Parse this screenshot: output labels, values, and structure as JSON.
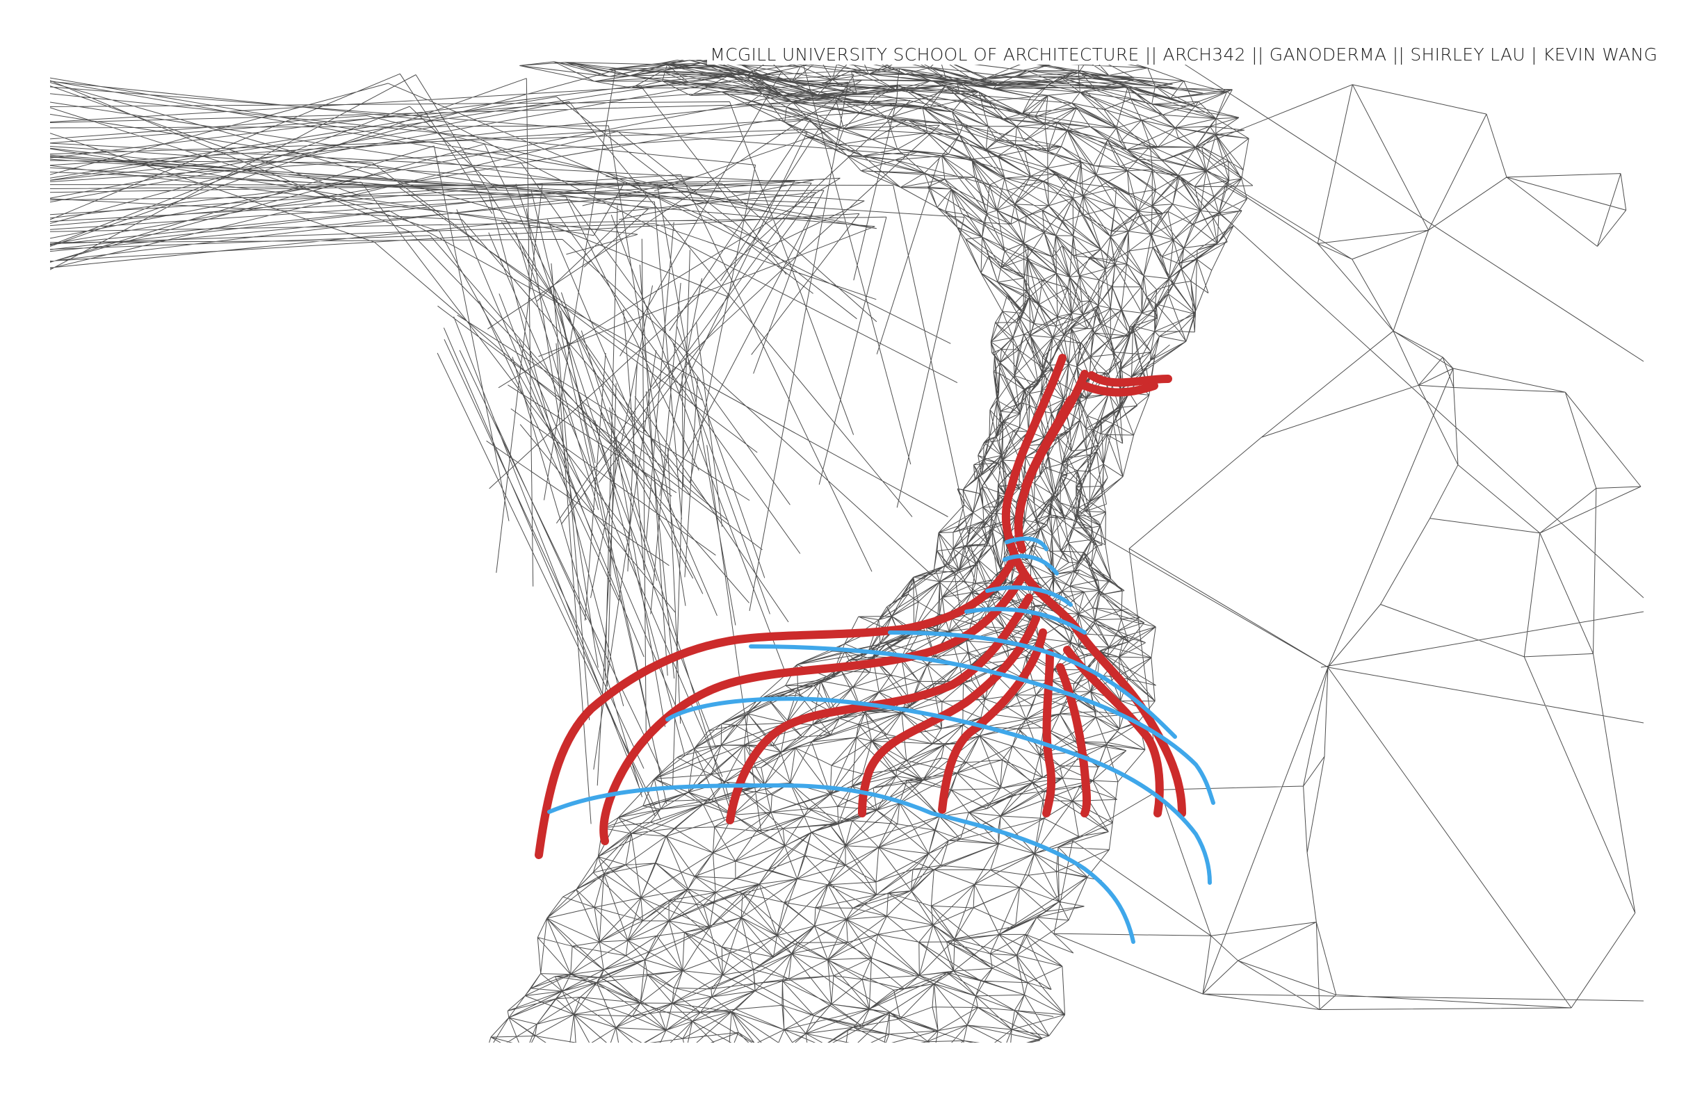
{
  "header": {
    "credit": "MCGILL UNIVERSITY SCHOOL OF ARCHITECTURE || ARCH342 || GANODERMA || SHIRLEY LAU | KEVIN WANG"
  },
  "drawing": {
    "mesh_color": "#111111",
    "trunk_color": "#cc2b2b",
    "contour_color": "#3fa7ea",
    "background_color": "#ffffff",
    "mesh_icon": "wireframe-terrain-mesh",
    "trunk_icon": "branching-red-strokes",
    "contour_icon": "blue-contour-strokes"
  }
}
